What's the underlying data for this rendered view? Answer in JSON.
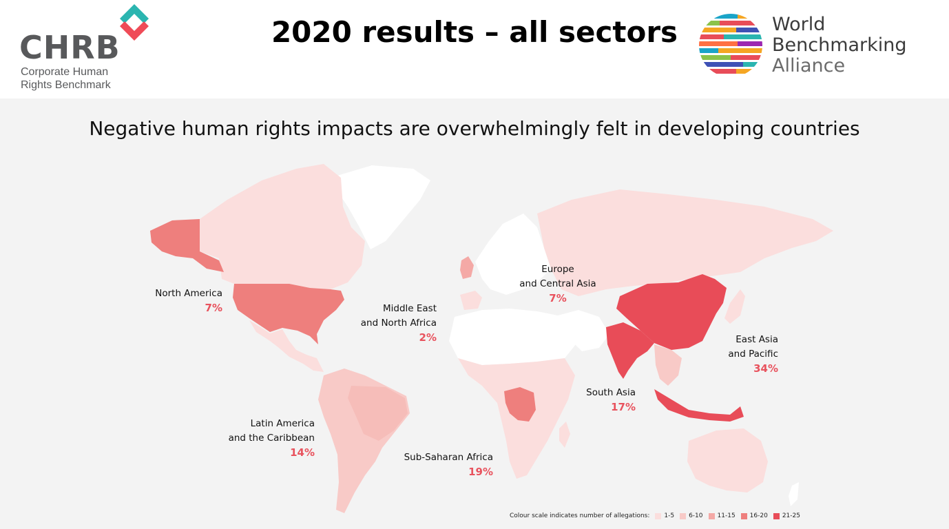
{
  "slide_title": "2020 results – all sectors",
  "subtitle": "Negative human rights impacts are overwhelmingly felt in developing countries",
  "logos": {
    "chrb": {
      "name": "CHRB",
      "sub_line1": "Corporate Human",
      "sub_line2": "Rights Benchmark"
    },
    "wba": {
      "line1": "World",
      "line2": "Benchmarking",
      "line3": "Alliance"
    }
  },
  "regions": [
    {
      "name_line1": "North America",
      "name_line2": "",
      "pct": "7%"
    },
    {
      "name_line1": "Europe",
      "name_line2": "and Central Asia",
      "pct": "7%"
    },
    {
      "name_line1": "Middle East",
      "name_line2": "and North Africa",
      "pct": "2%"
    },
    {
      "name_line1": "East Asia",
      "name_line2": "and Pacific",
      "pct": "34%"
    },
    {
      "name_line1": "South Asia",
      "name_line2": "",
      "pct": "17%"
    },
    {
      "name_line1": "Latin America",
      "name_line2": "and the Caribbean",
      "pct": "14%"
    },
    {
      "name_line1": "Sub-Saharan Africa",
      "name_line2": "",
      "pct": "19%"
    }
  ],
  "legend": {
    "caption": "Colour scale indicates number of allegations:",
    "bins": [
      {
        "label": "1-5",
        "color": "#fbdedd"
      },
      {
        "label": "6-10",
        "color": "#f8cac7"
      },
      {
        "label": "11-15",
        "color": "#f4a9a6"
      },
      {
        "label": "16-20",
        "color": "#ee7f7d"
      },
      {
        "label": "21-25",
        "color": "#e84c58"
      }
    ]
  },
  "colors": {
    "accent": "#e8525d",
    "no_data": "#ffffff",
    "background": "#f3f3f3"
  }
}
